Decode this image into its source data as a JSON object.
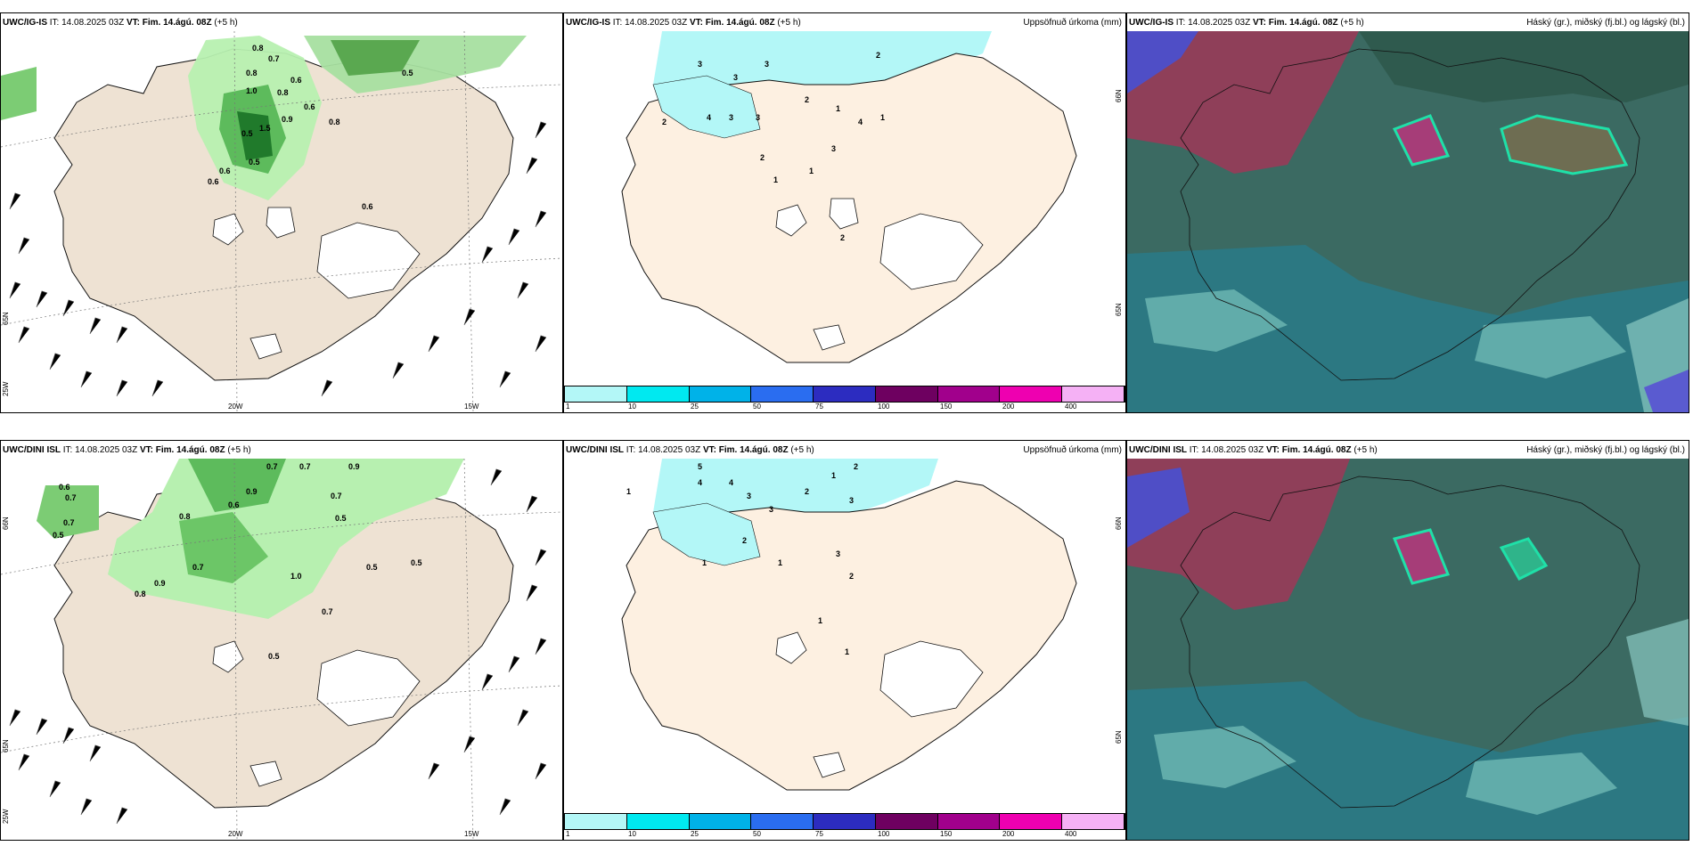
{
  "panels": {
    "p1": {
      "model": "UWC/IG-IS",
      "it_label": "IT:",
      "it": "14.08.2025 03Z",
      "vt_label": "VT: Fim. 14.ágú. 08Z",
      "lead": "(+5 h)",
      "right": ""
    },
    "p2": {
      "model": "UWC/IG-IS",
      "it_label": "IT:",
      "it": "14.08.2025 03Z",
      "vt_label": "VT: Fim. 14.ágú. 08Z",
      "lead": "(+5 h)",
      "right": "Uppsöfnuð úrkoma (mm)"
    },
    "p3": {
      "model": "UWC/IG-IS",
      "it_label": "IT:",
      "it": "14.08.2025 03Z",
      "vt_label": "VT: Fim. 14.ágú. 08Z",
      "lead": "(+5 h)",
      "right": "Háský (gr.), miðský (fj.bl.) og lágský (bl.)"
    },
    "p4": {
      "model": "UWC/DINI ISL",
      "it_label": "IT:",
      "it": "14.08.2025 03Z",
      "vt_label": "VT: Fim. 14.ágú. 08Z",
      "lead": "(+5 h)",
      "right": ""
    },
    "p5": {
      "model": "UWC/DINI ISL",
      "it_label": "IT:",
      "it": "14.08.2025 03Z",
      "vt_label": "VT: Fim. 14.ágú. 08Z",
      "lead": "(+5 h)",
      "right": "Uppsöfnuð úrkoma (mm)"
    },
    "p6": {
      "model": "UWC/DINI ISL",
      "it_label": "IT:",
      "it": "14.08.2025 03Z",
      "vt_label": "VT: Fim. 14.ágú. 08Z",
      "lead": "(+5 h)",
      "right": "Háský (gr.), miðský (fj.bl.) og lágský (bl.)"
    }
  },
  "axes": {
    "lon_20w": "20W",
    "lon_15w": "15W",
    "lat_65n": "65N",
    "lat_66n": "66N",
    "lon_25w": "25W"
  },
  "colorbar": {
    "labels": [
      "1",
      "10",
      "25",
      "50",
      "75",
      "100",
      "150",
      "200",
      "400"
    ],
    "colors": [
      "#b3f7f7",
      "#00e9f0",
      "#00b2e8",
      "#2a6df0",
      "#2c2cc0",
      "#6e0060",
      "#a1008c",
      "#ee00b0",
      "#f5b1f5"
    ]
  },
  "precip_labels_top": [
    "0.8",
    "0.7",
    "0.8",
    "0.5",
    "0.6",
    "1.0",
    "0.8",
    "0.9",
    "0.6",
    "0.5",
    "1.5",
    "0.8",
    "0.6",
    "0.5",
    "0.6",
    "0.6"
  ],
  "precip_labels_bottom": [
    "0.6",
    "0.7",
    "0.7",
    "0.5",
    "0.7",
    "0.7",
    "0.9",
    "0.8",
    "0.6",
    "0.9",
    "0.7",
    "0.5",
    "0.5",
    "1.0",
    "0.5",
    "0.7",
    "0.8",
    "0.9",
    "0.7",
    "0.5"
  ],
  "accum_labels_top": [
    "3",
    "3",
    "3",
    "2",
    "4",
    "2",
    "3",
    "3",
    "2",
    "1",
    "1",
    "2",
    "1",
    "1",
    "3",
    "4",
    "2"
  ],
  "accum_labels_bottom": [
    "5",
    "4",
    "4",
    "3",
    "3",
    "2",
    "3",
    "1",
    "2",
    "1",
    "2",
    "1",
    "3",
    "2",
    "1",
    "1",
    "1"
  ]
}
